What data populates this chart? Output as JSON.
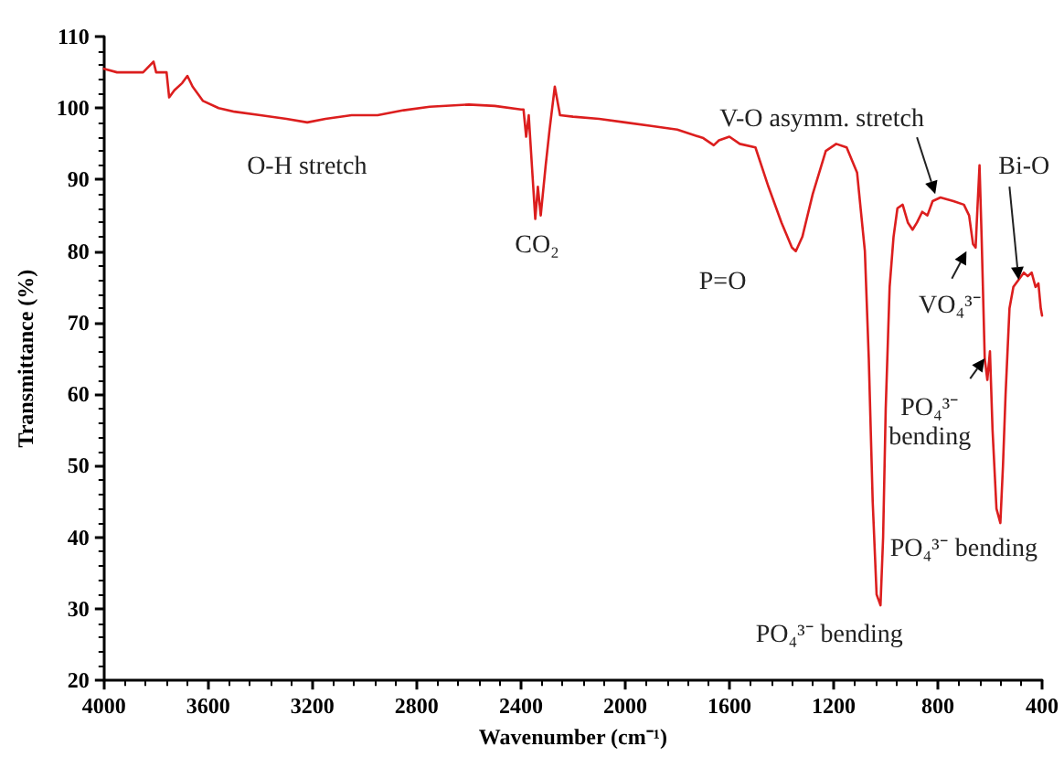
{
  "chart_data": {
    "type": "line",
    "xlabel": "Wavenumber (cm⁻¹)",
    "ylabel": "Transmittance (%)",
    "x": [
      4000,
      3950,
      3900,
      3850,
      3810,
      3800,
      3760,
      3750,
      3730,
      3700,
      3680,
      3660,
      3620,
      3560,
      3500,
      3400,
      3300,
      3220,
      3150,
      3050,
      2950,
      2850,
      2750,
      2600,
      2500,
      2400,
      2390,
      2380,
      2370,
      2345,
      2335,
      2324,
      2305,
      2290,
      2270,
      2250,
      2200,
      2100,
      2000,
      1900,
      1800,
      1700,
      1660,
      1640,
      1600,
      1560,
      1500,
      1450,
      1400,
      1360,
      1345,
      1320,
      1280,
      1230,
      1190,
      1150,
      1110,
      1080,
      1065,
      1050,
      1035,
      1025,
      1020,
      1010,
      1000,
      985,
      970,
      955,
      935,
      915,
      897,
      880,
      860,
      840,
      820,
      790,
      740,
      700,
      680,
      665,
      655,
      648,
      640,
      632,
      620,
      610,
      600,
      590,
      575,
      560,
      550,
      540,
      525,
      510,
      490,
      470,
      455,
      440,
      425,
      414,
      405,
      400
    ],
    "series": [
      {
        "color": "#dc1e1e",
        "values": [
          105.5,
          105,
          105,
          105,
          106.5,
          105,
          105,
          101.5,
          102.5,
          103.5,
          104.5,
          103,
          101,
          100,
          99.5,
          99,
          98.5,
          98,
          98.5,
          99,
          99,
          99.7,
          100.2,
          100.5,
          100.3,
          99.8,
          99.8,
          96,
          99,
          84.5,
          89,
          85,
          92,
          97,
          103,
          99,
          98.8,
          98.5,
          98,
          97.5,
          97,
          95.8,
          94.8,
          95.5,
          96,
          95,
          94.5,
          89,
          84,
          80.5,
          80,
          82,
          88,
          94,
          95,
          94.5,
          91,
          80,
          65,
          45,
          32,
          31,
          30.5,
          40,
          58,
          75,
          82,
          86,
          86.5,
          84,
          83,
          84,
          85.5,
          85,
          87,
          87.5,
          87,
          86.5,
          85,
          81,
          80.5,
          86,
          92,
          82,
          65,
          62,
          66,
          55,
          44,
          42,
          50,
          60,
          72,
          75,
          76,
          77,
          76.5,
          77,
          75,
          75.5,
          72,
          71
        ]
      }
    ],
    "xlim": [
      4000,
      400
    ],
    "xticks": [
      4000,
      3600,
      3200,
      2800,
      2400,
      2000,
      1600,
      1200,
      800,
      400
    ],
    "ylim": [
      20,
      110
    ],
    "yticks": [
      20,
      30,
      40,
      50,
      60,
      70,
      80,
      90,
      100,
      110
    ],
    "grid": false,
    "marker": "none",
    "line_style": "solid",
    "annotations": [
      {
        "text": "O-H stretch",
        "x": 3200,
        "y": 98
      },
      {
        "text": "CO₂",
        "x": 2345,
        "y": 84.5
      },
      {
        "text": "P=O",
        "x": 1345,
        "y": 80
      },
      {
        "text": "V-O asymm. stretch",
        "x": 810,
        "y": 88
      },
      {
        "text": "VO₄³⁻",
        "x": 690,
        "y": 80
      },
      {
        "text": "Bi-O",
        "x": 490,
        "y": 76
      },
      {
        "text": "PO₄³⁻ bending",
        "x": 620,
        "y": 65
      },
      {
        "text": "PO₄³⁻ bending",
        "x": 560,
        "y": 42
      },
      {
        "text": "PO₄³⁻ bending",
        "x": 1020,
        "y": 30.5
      }
    ]
  }
}
